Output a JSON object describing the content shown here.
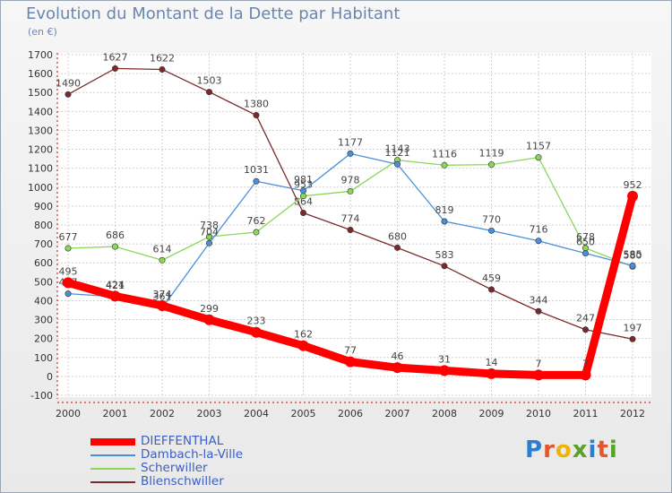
{
  "title": "Evolution du Montant de la Dette par Habitant",
  "unit": "(en €)",
  "logo": {
    "text": "Proxiti",
    "letter_colors": [
      "#2a7fd1",
      "#e4572e",
      "#f0b400",
      "#5aa02c",
      "#2a7fd1",
      "#e4572e",
      "#5aa02c"
    ]
  },
  "chart_data": {
    "type": "line",
    "x": [
      "2000",
      "2001",
      "2002",
      "2003",
      "2004",
      "2005",
      "2006",
      "2007",
      "2008",
      "2009",
      "2010",
      "2011",
      "2012"
    ],
    "ylim": [
      -100,
      1700
    ],
    "yticks": [
      "-100",
      "0",
      "100",
      "200",
      "300",
      "400",
      "500",
      "600",
      "700",
      "800",
      "900",
      "1000",
      "1100",
      "1200",
      "1300",
      "1400",
      "1500",
      "1600",
      "1700"
    ],
    "grid": true,
    "legend_position": "bottom-left",
    "series": [
      {
        "name": "DIEFFENTHAL",
        "color": "#ff0000",
        "values": [
          495,
          424,
          374,
          299,
          233,
          162,
          77,
          46,
          31,
          14,
          7,
          7,
          952
        ],
        "labels": [
          "495",
          "424",
          "374",
          "299",
          "233",
          "162",
          "77",
          "46",
          "31",
          "14",
          "7",
          "7",
          "952"
        ]
      },
      {
        "name": "Dambach-la-Ville",
        "color": "#4a90d9",
        "values": [
          437,
          421,
          361,
          704,
          1031,
          981,
          1177,
          1121,
          819,
          770,
          716,
          650,
          585
        ],
        "labels": [
          "437",
          "421",
          "361",
          "704",
          "1031",
          "981",
          "1177",
          "1121",
          "819",
          "770",
          "716",
          "650",
          "585"
        ]
      },
      {
        "name": "Scherwiller",
        "color": "#8cd65a",
        "values": [
          677,
          686,
          614,
          738,
          762,
          953,
          978,
          1143,
          1116,
          1119,
          1157,
          678,
          580
        ],
        "labels": [
          "677",
          "686",
          "614",
          "738",
          "762",
          "953",
          "978",
          "1143",
          "1116",
          "1119",
          "1157",
          "678",
          "580"
        ]
      },
      {
        "name": "Blienschwiller",
        "color": "#7a2a2a",
        "values": [
          1490,
          1627,
          1622,
          1503,
          1380,
          864,
          774,
          680,
          583,
          459,
          344,
          247,
          197
        ],
        "labels": [
          "1490",
          "1627",
          "1622",
          "1503",
          "1380",
          "864",
          "774",
          "680",
          "583",
          "459",
          "344",
          "247",
          "197"
        ]
      }
    ]
  }
}
